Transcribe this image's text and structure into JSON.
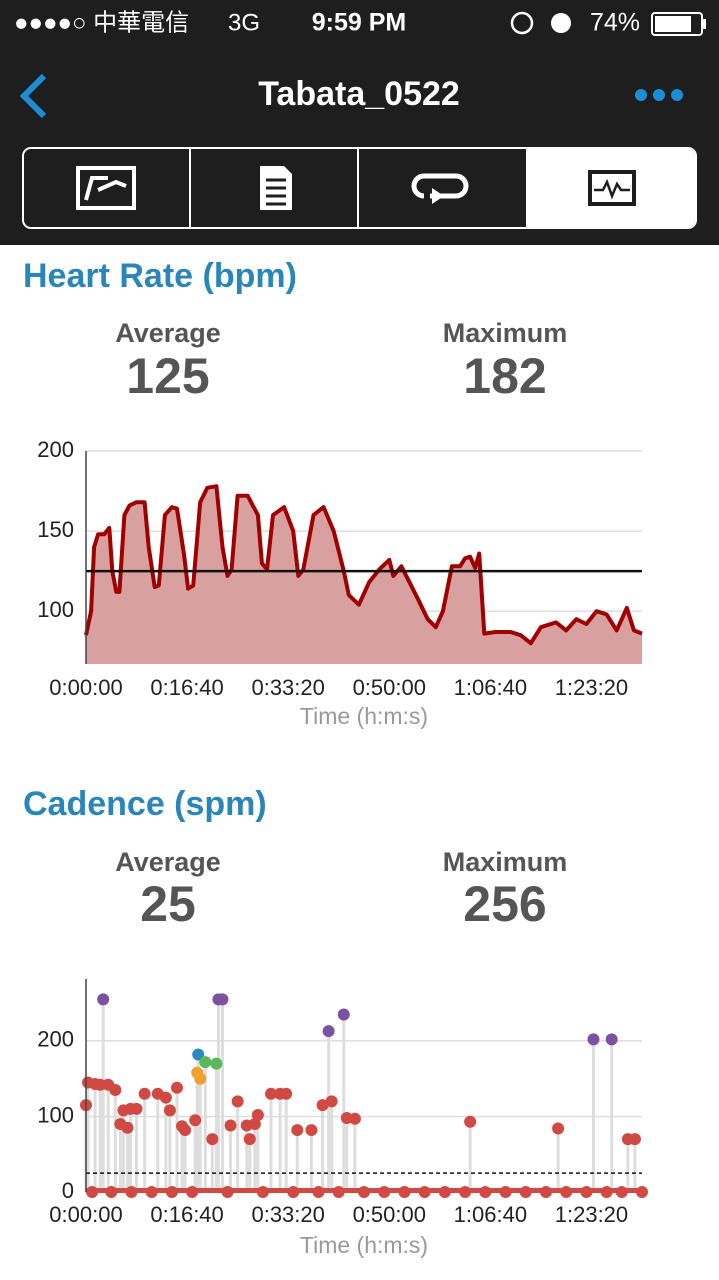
{
  "status_bar": {
    "carrier": "●●●●○ 中華電信",
    "network": "3G",
    "time": "9:59 PM",
    "battery": "74%"
  },
  "nav": {
    "title": "Tabata_0522"
  },
  "sections": [
    {
      "title": "Heart Rate (bpm)",
      "stats": [
        {
          "label": "Average",
          "value": 125
        },
        {
          "label": "Maximum",
          "value": 182
        }
      ]
    },
    {
      "title": "Cadence (spm)",
      "stats": [
        {
          "label": "Average",
          "value": 25
        },
        {
          "label": "Maximum",
          "value": 256
        }
      ]
    }
  ],
  "chart_data": [
    {
      "type": "line",
      "x_label": "Time (h:m:s)",
      "color": "#a00000",
      "fill": "#d9a0a0",
      "grid": true,
      "xlim": [
        0,
        5500
      ],
      "ylim": [
        67,
        200
      ],
      "xticks": [
        {
          "value": 0,
          "label": "0:00:00"
        },
        {
          "value": 1000,
          "label": "0:16:40"
        },
        {
          "value": 2000,
          "label": "0:33:20"
        },
        {
          "value": 3000,
          "label": "0:50:00"
        },
        {
          "value": 4000,
          "label": "1:06:40"
        },
        {
          "value": 5000,
          "label": "1:23:20"
        }
      ],
      "yticks": [
        100,
        150,
        200
      ],
      "x": [
        0,
        50,
        80,
        120,
        180,
        230,
        260,
        300,
        330,
        380,
        430,
        500,
        580,
        620,
        680,
        720,
        780,
        850,
        900,
        970,
        1010,
        1060,
        1130,
        1200,
        1290,
        1350,
        1400,
        1440,
        1500,
        1600,
        1700,
        1740,
        1790,
        1850,
        1960,
        2050,
        2100,
        2150,
        2250,
        2350,
        2450,
        2550,
        2600,
        2700,
        2800,
        2900,
        3000,
        3040,
        3120,
        3200,
        3280,
        3380,
        3460,
        3530,
        3620,
        3700,
        3750,
        3800,
        3850,
        3890,
        3940,
        4050,
        4200,
        4300,
        4400,
        4500,
        4650,
        4750,
        4850,
        4950,
        5050,
        5150,
        5250,
        5350,
        5420,
        5500
      ],
      "values": [
        85,
        100,
        140,
        148,
        148,
        152,
        125,
        112,
        112,
        160,
        166,
        168,
        168,
        140,
        115,
        116,
        160,
        165,
        164,
        135,
        114,
        116,
        168,
        177,
        178,
        140,
        122,
        126,
        172,
        172,
        160,
        130,
        126,
        160,
        165,
        150,
        122,
        126,
        160,
        165,
        150,
        125,
        110,
        104,
        118,
        126,
        132,
        122,
        128,
        118,
        108,
        95,
        90,
        100,
        128,
        128,
        133,
        134,
        127,
        136,
        86,
        87,
        87,
        85,
        80,
        90,
        93,
        88,
        95,
        92,
        100,
        98,
        88,
        102,
        88,
        86
      ]
    },
    {
      "type": "scatter",
      "x_label": "Time (h:m:s)",
      "grid": true,
      "xlim": [
        0,
        5500
      ],
      "ylim": [
        0,
        282
      ],
      "xticks": [
        {
          "value": 0,
          "label": "0:00:00"
        },
        {
          "value": 1000,
          "label": "0:16:40"
        },
        {
          "value": 2000,
          "label": "0:33:20"
        },
        {
          "value": 3000,
          "label": "0:50:00"
        },
        {
          "value": 4000,
          "label": "1:06:40"
        },
        {
          "value": 5000,
          "label": "1:23:20"
        }
      ],
      "yticks": [
        0,
        100,
        200
      ],
      "x": [
        0,
        20,
        90,
        140,
        170,
        220,
        290,
        340,
        370,
        410,
        440,
        500,
        580,
        710,
        790,
        830,
        900,
        950,
        980,
        1080,
        1100,
        1110,
        1130,
        1180,
        1250,
        1290,
        1310,
        1350,
        1430,
        1500,
        1590,
        1620,
        1670,
        1700,
        1830,
        1920,
        1980,
        2090,
        2230,
        2340,
        2400,
        2430,
        2550,
        2580,
        2660,
        3800,
        4670,
        5020,
        5200,
        5360,
        5430,
        60,
        250,
        450,
        650,
        850,
        1050,
        1400,
        1750,
        2050,
        2300,
        2500,
        2750,
        2950,
        3150,
        3350,
        3550,
        3750,
        3950,
        4150,
        4350,
        4550,
        4750,
        4950,
        5150,
        5300,
        5500
      ],
      "values": [
        115,
        145,
        143,
        142,
        255,
        142,
        135,
        90,
        108,
        85,
        110,
        110,
        130,
        130,
        125,
        108,
        138,
        87,
        82,
        95,
        158,
        182,
        150,
        172,
        70,
        170,
        255,
        255,
        88,
        120,
        88,
        70,
        90,
        102,
        130,
        130,
        130,
        82,
        82,
        115,
        213,
        120,
        235,
        98,
        97,
        93,
        84,
        202,
        202,
        70,
        70,
        0,
        0,
        0,
        0,
        0,
        0,
        0,
        0,
        0,
        0,
        0,
        0,
        0,
        0,
        0,
        0,
        0,
        0,
        0,
        0,
        0,
        0,
        0,
        0,
        0,
        0
      ],
      "colors": [
        "#d04a43",
        "#d04a43",
        "#d04a43",
        "#d04a43",
        "#7b52a0",
        "#d04a43",
        "#d04a43",
        "#d04a43",
        "#d04a43",
        "#d04a43",
        "#d04a43",
        "#d04a43",
        "#d04a43",
        "#d04a43",
        "#d04a43",
        "#d04a43",
        "#d04a43",
        "#d04a43",
        "#d04a43",
        "#d04a43",
        "#f0a030",
        "#2a8bc0",
        "#f0a030",
        "#5cb85c",
        "#d04a43",
        "#5cb85c",
        "#7b52a0",
        "#7b52a0",
        "#d04a43",
        "#d04a43",
        "#d04a43",
        "#d04a43",
        "#d04a43",
        "#d04a43",
        "#d04a43",
        "#d04a43",
        "#d04a43",
        "#d04a43",
        "#d04a43",
        "#d04a43",
        "#7b52a0",
        "#d04a43",
        "#7b52a0",
        "#d04a43",
        "#d04a43",
        "#d04a43",
        "#d04a43",
        "#7b52a0",
        "#7b52a0",
        "#d04a43",
        "#d04a43",
        "#d04a43",
        "#d04a43",
        "#d04a43",
        "#d04a43",
        "#d04a43",
        "#d04a43",
        "#d04a43",
        "#d04a43",
        "#d04a43",
        "#d04a43",
        "#d04a43",
        "#d04a43",
        "#d04a43",
        "#d04a43",
        "#d04a43",
        "#d04a43",
        "#d04a43",
        "#d04a43",
        "#d04a43",
        "#d04a43",
        "#d04a43",
        "#d04a43",
        "#d04a43",
        "#d04a43",
        "#d04a43",
        "#d04a43"
      ]
    }
  ]
}
